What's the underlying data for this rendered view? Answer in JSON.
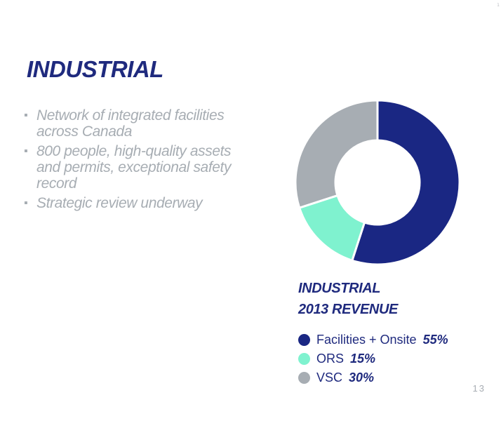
{
  "slide": {
    "title": "INDUSTRIAL",
    "bullets": [
      "Network of integrated facilities across Canada",
      "800 people, high-quality assets and permits, exceptional safety record",
      "Strategic review underway"
    ],
    "bullet_marker": "▪",
    "page_number": "13",
    "corner_mark": "1"
  },
  "chart_data": {
    "type": "pie",
    "variant": "donut",
    "title_lines": [
      "INDUSTRIAL",
      "2013 REVENUE"
    ],
    "categories": [
      "Facilities + Onsite",
      "ORS",
      "VSC"
    ],
    "values": [
      55,
      15,
      30
    ],
    "value_labels": [
      "55%",
      "15%",
      "30%"
    ],
    "colors": [
      "#1a2783",
      "#7ff2cf",
      "#a7adb3"
    ],
    "start_angle_deg": 0,
    "direction": "clockwise",
    "legend_position": "bottom"
  }
}
